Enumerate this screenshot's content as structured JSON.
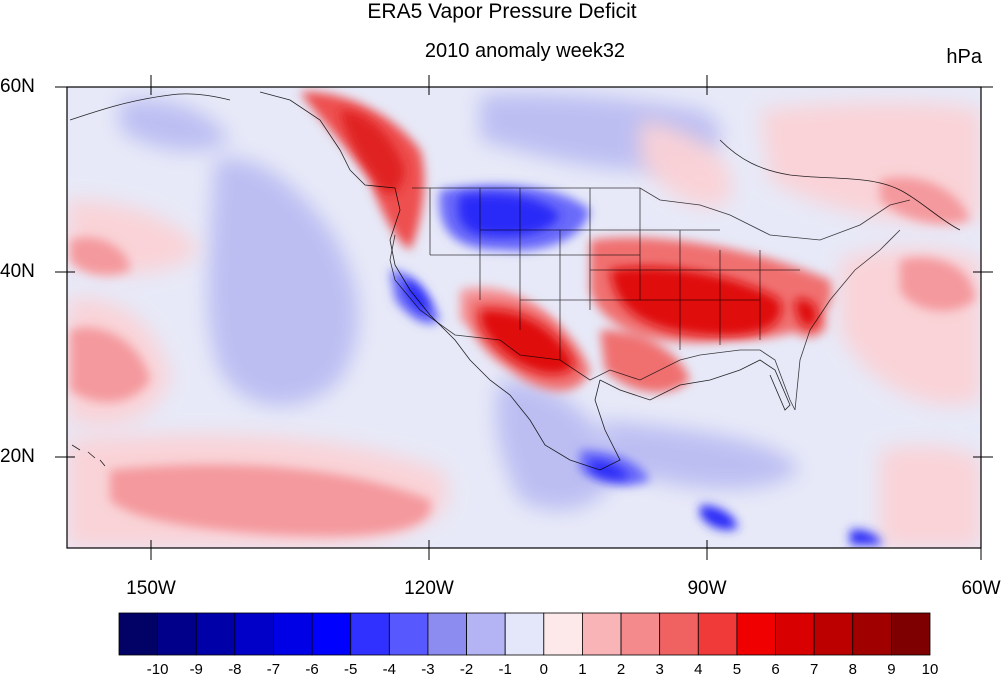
{
  "title": "ERA5 Vapor Pressure Deficit",
  "subtitle": "2010 anomaly week32",
  "units": "hPa",
  "lat_labels": [
    "60N",
    "40N",
    "20N"
  ],
  "lon_labels": [
    "150W",
    "120W",
    "90W",
    "60W"
  ],
  "colorbar": {
    "labels": [
      "-10",
      "-9",
      "-8",
      "-7",
      "-6",
      "-5",
      "-4",
      "-3",
      "-2",
      "-1",
      "0",
      "1",
      "2",
      "3",
      "4",
      "5",
      "6",
      "7",
      "8",
      "9",
      "10"
    ],
    "colors": [
      "#020266",
      "#00008b",
      "#0000a8",
      "#0000c8",
      "#0000e6",
      "#0000ff",
      "#3030ff",
      "#5858ff",
      "#8c8cf0",
      "#b4b4f4",
      "#e4e6fa",
      "#fde8ea",
      "#f8b4b6",
      "#f48a8c",
      "#f06262",
      "#f03a3a",
      "#f00000",
      "#d80000",
      "#bc0000",
      "#a00000",
      "#7e0000"
    ]
  }
}
